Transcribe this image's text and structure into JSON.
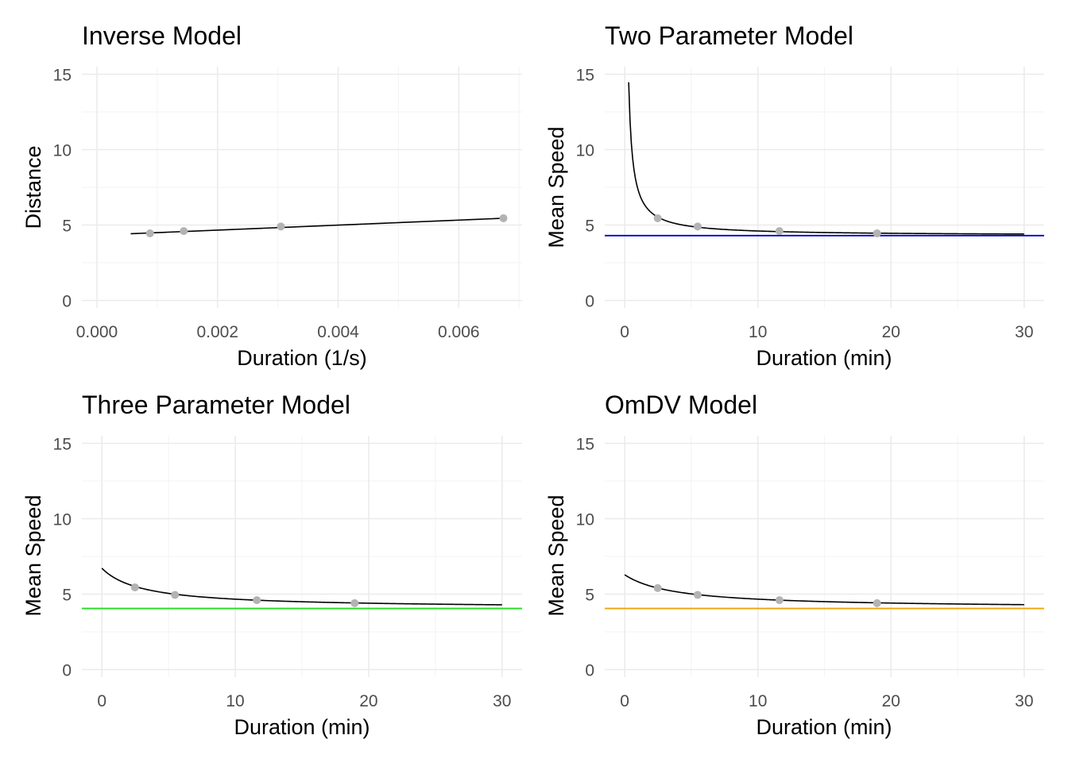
{
  "chart_data": [
    {
      "type": "scatter",
      "title": "Inverse Model",
      "xlabel": "Duration (1/s)",
      "ylabel": "Distance",
      "xlim": [
        -0.00025,
        0.00705
      ],
      "ylim": [
        -0.5,
        15.5
      ],
      "x_ticks": [
        0.0,
        0.002,
        0.004,
        0.006
      ],
      "x_tick_labels": [
        "0.000",
        "0.002",
        "0.004",
        "0.006"
      ],
      "y_ticks": [
        0,
        5,
        10,
        15
      ],
      "y_tick_labels": [
        "0",
        "5",
        "10",
        "15"
      ],
      "points": {
        "x": [
          0.00088,
          0.00144,
          0.00305,
          0.00674
        ],
        "y": [
          4.45,
          4.6,
          4.9,
          5.45
        ],
        "color": "#b3b3b3"
      },
      "fit": {
        "kind": "linear",
        "x_range": [
          0.00056,
          0.00674
        ],
        "intercept": 4.33,
        "slope": 166.0,
        "color": "#000000"
      },
      "grid": true
    },
    {
      "type": "scatter",
      "title": "Two Parameter Model",
      "xlabel": "Duration (min)",
      "ylabel": "Mean Speed",
      "xlim": [
        -1.5,
        31.5
      ],
      "ylim": [
        -0.5,
        15.5
      ],
      "x_ticks": [
        0,
        10,
        20,
        30
      ],
      "x_tick_labels": [
        "0",
        "10",
        "20",
        "30"
      ],
      "y_ticks": [
        0,
        5,
        10,
        15
      ],
      "y_tick_labels": [
        "0",
        "5",
        "10",
        "15"
      ],
      "points": {
        "x": [
          2.48,
          5.48,
          11.62,
          18.95
        ],
        "y": [
          5.45,
          4.9,
          4.6,
          4.45
        ],
        "color": "#b3b3b3"
      },
      "fit": {
        "kind": "hyperbolic",
        "x_range": [
          0.3,
          30
        ],
        "asymptote": 4.3,
        "coefficient": 3.05,
        "color": "#000000"
      },
      "hline": {
        "y": 4.3,
        "color": "#0000cd"
      },
      "grid": true
    },
    {
      "type": "scatter",
      "title": "Three Parameter Model",
      "xlabel": "Duration (min)",
      "ylabel": "Mean Speed",
      "xlim": [
        -1.5,
        31.5
      ],
      "ylim": [
        -0.5,
        15.5
      ],
      "x_ticks": [
        0,
        10,
        20,
        30
      ],
      "x_tick_labels": [
        "0",
        "10",
        "20",
        "30"
      ],
      "y_ticks": [
        0,
        5,
        10,
        15
      ],
      "y_tick_labels": [
        "0",
        "5",
        "10",
        "15"
      ],
      "points": {
        "x": [
          2.48,
          5.48,
          11.62,
          18.95
        ],
        "y": [
          5.45,
          4.95,
          4.6,
          4.4
        ],
        "color": "#b3b3b3"
      },
      "fit": {
        "kind": "three-parameter",
        "x_range": [
          0,
          30
        ],
        "asymptote": 4.05,
        "coefficient": 8.0,
        "offset": 3.0,
        "color": "#000000"
      },
      "hline": {
        "y": 4.05,
        "color": "#22dd22"
      },
      "grid": true
    },
    {
      "type": "scatter",
      "title": "OmDV Model",
      "xlabel": "Duration (min)",
      "ylabel": "Mean Speed",
      "xlim": [
        -1.5,
        31.5
      ],
      "ylim": [
        -0.5,
        15.5
      ],
      "x_ticks": [
        0,
        10,
        20,
        30
      ],
      "x_tick_labels": [
        "0",
        "10",
        "20",
        "30"
      ],
      "y_ticks": [
        0,
        5,
        10,
        15
      ],
      "y_tick_labels": [
        "0",
        "5",
        "10",
        "15"
      ],
      "points": {
        "x": [
          2.48,
          5.48,
          11.62,
          18.95
        ],
        "y": [
          5.4,
          4.95,
          4.6,
          4.4
        ],
        "color": "#b3b3b3"
      },
      "fit": {
        "kind": "three-parameter",
        "x_range": [
          0,
          30
        ],
        "asymptote": 4.05,
        "coefficient": 8.5,
        "offset": 3.8,
        "color": "#000000"
      },
      "hline": {
        "y": 4.05,
        "color": "#f0a30a"
      },
      "grid": true
    }
  ]
}
